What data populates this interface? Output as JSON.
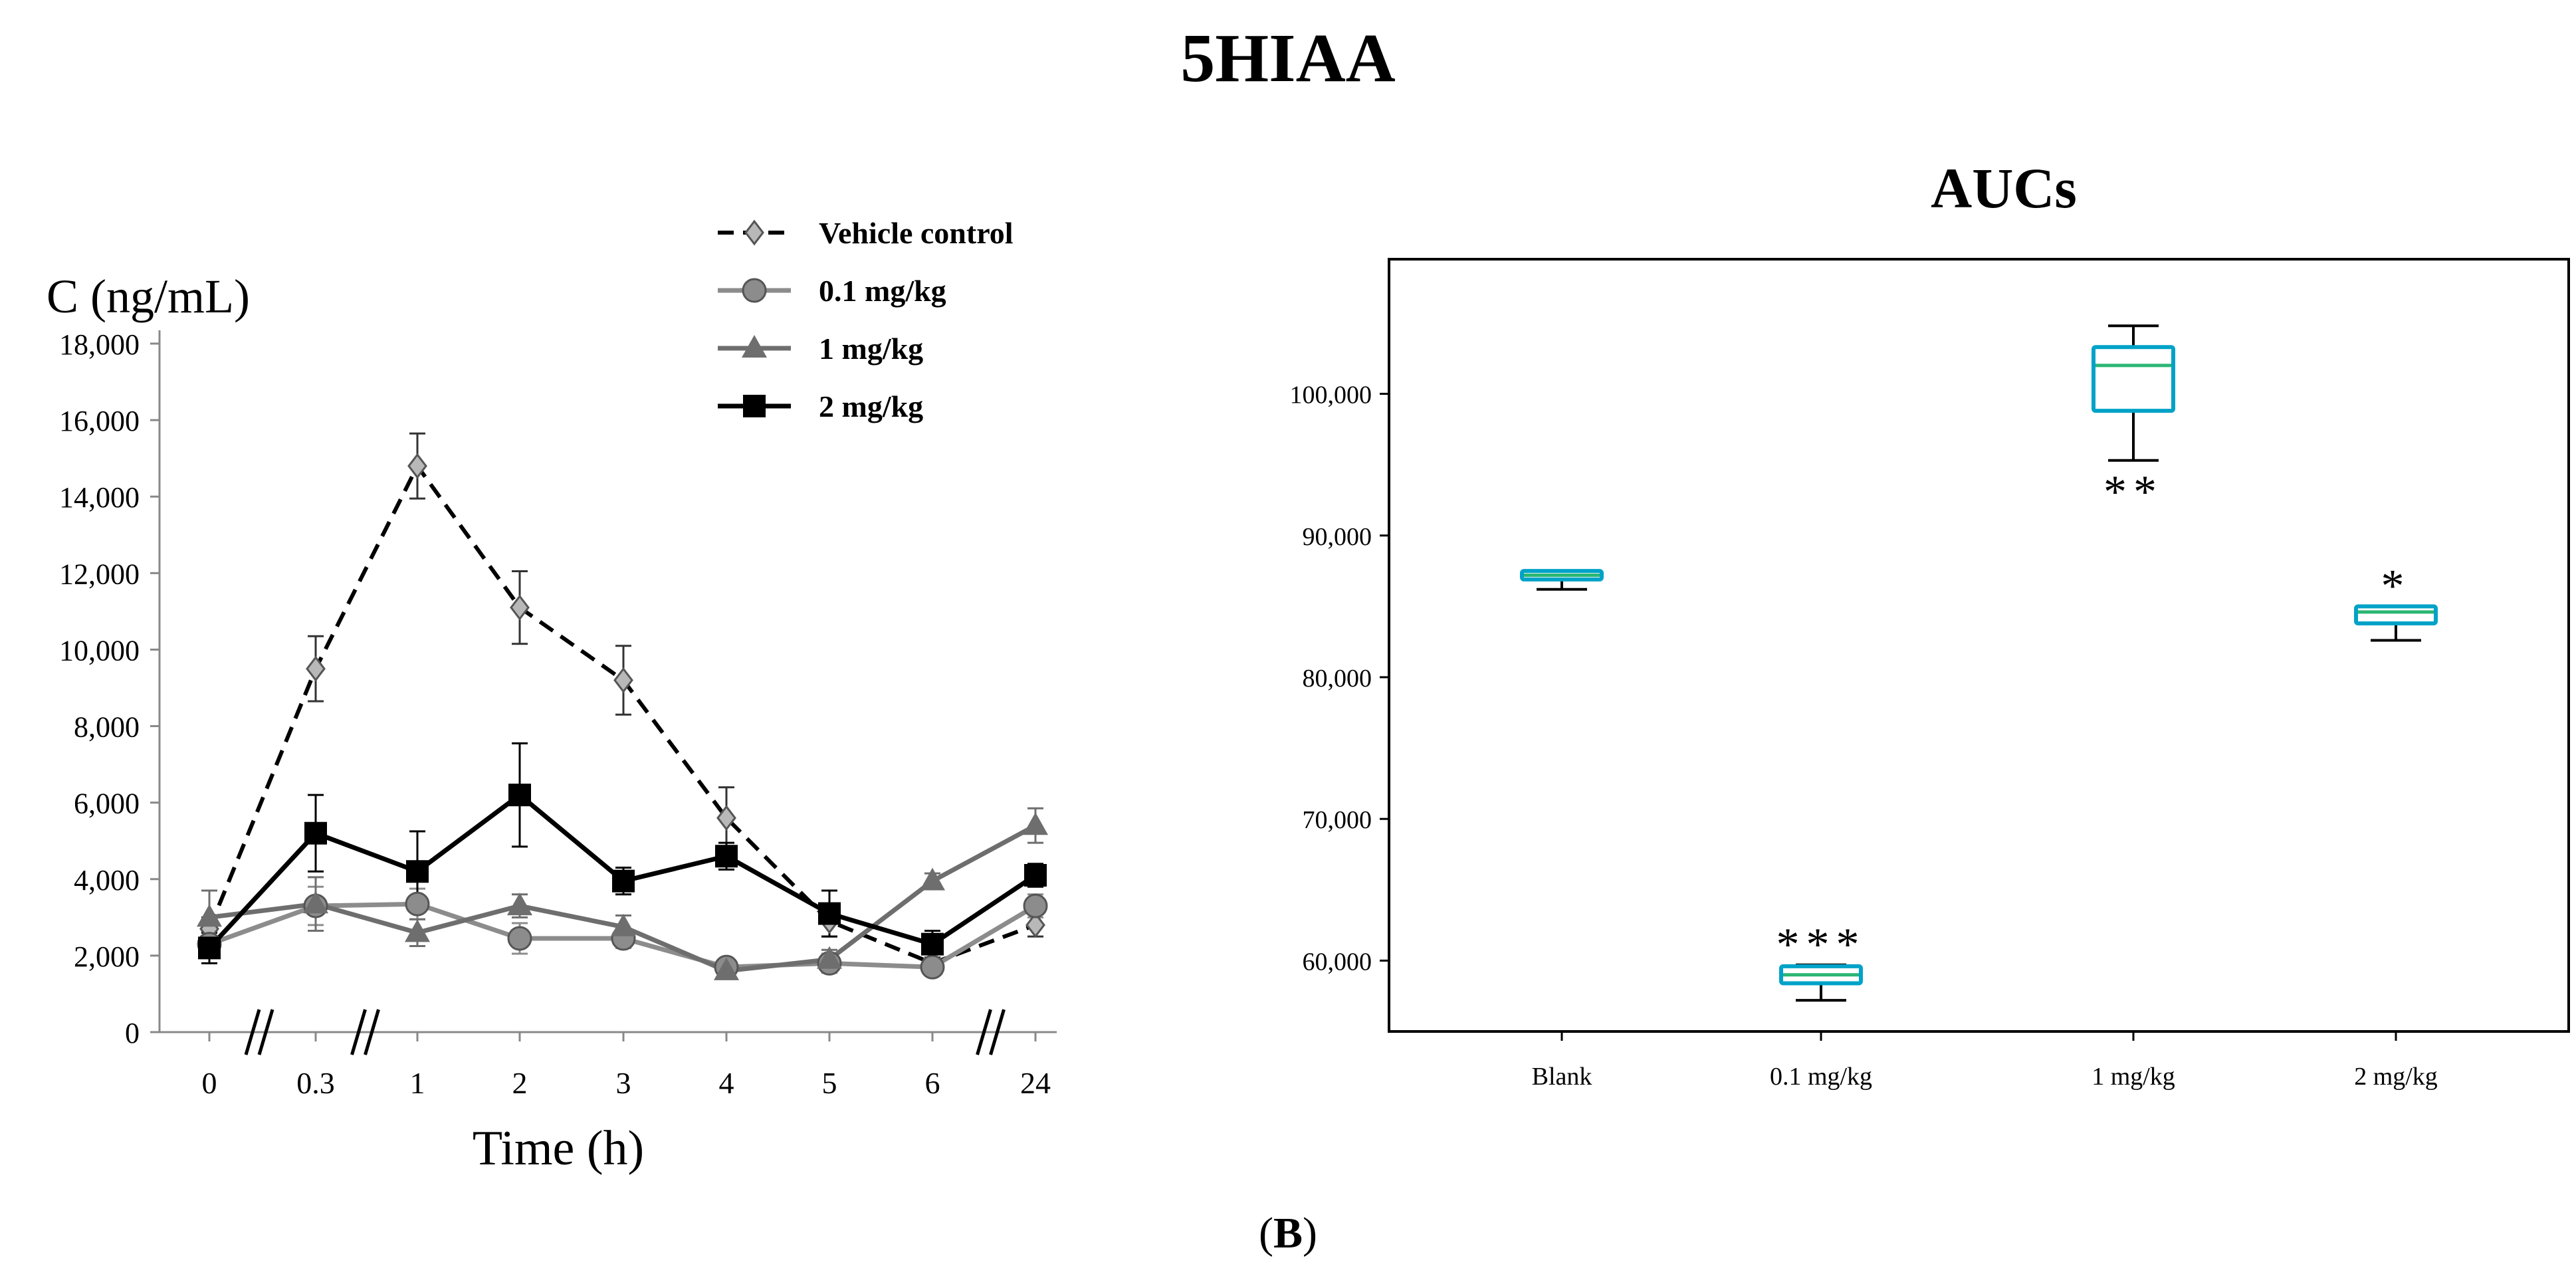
{
  "figure": {
    "title": "5HIAA",
    "panel_label_open": "(",
    "panel_label_letter": "B",
    "panel_label_close": ")"
  },
  "chart_data": [
    {
      "type": "line",
      "title": "",
      "ylabel": "C (ng/mL)",
      "xlabel": "Time (h)",
      "categories": [
        "0",
        "0.3",
        "1",
        "2",
        "3",
        "4",
        "5",
        "6",
        "24"
      ],
      "axis_breaks_after": [
        "0",
        "0.3",
        "6"
      ],
      "ylim": [
        0,
        18000
      ],
      "yticks": [
        0,
        2000,
        4000,
        6000,
        8000,
        10000,
        12000,
        14000,
        16000,
        18000
      ],
      "ytick_labels": [
        "0",
        "2,000",
        "4,000",
        "6,000",
        "8,000",
        "10,000",
        "12,000",
        "14,000",
        "16,000",
        "18,000"
      ],
      "legend_position": "top-center",
      "series": [
        {
          "name": "Vehicle control",
          "color": "#000000",
          "marker_color": "#b8b8b8",
          "marker": "diamond",
          "dashed": true,
          "values": [
            2700,
            9500,
            14800,
            11100,
            9200,
            5600,
            2900,
            1800,
            2800
          ],
          "errors": [
            300,
            850,
            850,
            950,
            900,
            800,
            400,
            300,
            300
          ]
        },
        {
          "name": "0.1 mg/kg",
          "color": "#8c8c8c",
          "marker_color": "#8c8c8c",
          "marker": "circle",
          "dashed": false,
          "values": [
            2300,
            3300,
            3350,
            2450,
            2450,
            1700,
            1800,
            1700,
            3300
          ],
          "errors": [
            300,
            500,
            400,
            400,
            250,
            200,
            250,
            200,
            300
          ]
        },
        {
          "name": "1 mg/kg",
          "color": "#6e6e6e",
          "marker_color": "#6e6e6e",
          "marker": "triangle",
          "dashed": false,
          "values": [
            3000,
            3350,
            2600,
            3300,
            2750,
            1600,
            1900,
            3950,
            5400
          ],
          "errors": [
            700,
            700,
            350,
            300,
            300,
            200,
            250,
            200,
            450
          ]
        },
        {
          "name": "2 mg/kg",
          "color": "#000000",
          "marker_color": "#000000",
          "marker": "square",
          "dashed": false,
          "values": [
            2200,
            5200,
            4200,
            6200,
            3950,
            4600,
            3100,
            2300,
            4100
          ],
          "errors": [
            400,
            1000,
            1050,
            1350,
            350,
            350,
            600,
            350,
            300
          ]
        }
      ]
    },
    {
      "type": "box",
      "title": "AUCs",
      "xlabel": "",
      "ylabel": "",
      "categories": [
        "Blank",
        "0.1 mg/kg",
        "1 mg/kg",
        "2 mg/kg"
      ],
      "ylim": [
        55000,
        109500
      ],
      "yticks": [
        60000,
        70000,
        80000,
        90000,
        100000
      ],
      "ytick_labels": [
        "60,000",
        "70,000",
        "80,000",
        "90,000",
        "100,000"
      ],
      "box_color": "#00a2c8",
      "median_color": "#2bb673",
      "whisker_color": "#000000",
      "boxes": [
        {
          "label": "Blank",
          "min": 86200,
          "q1": 86900,
          "median": 87200,
          "q3": 87500,
          "max": 87500,
          "significance": ""
        },
        {
          "label": "0.1 mg/kg",
          "min": 57200,
          "q1": 58400,
          "median": 59000,
          "q3": 59600,
          "max": 59700,
          "significance": "***"
        },
        {
          "label": "1 mg/kg",
          "min": 95300,
          "q1": 98800,
          "median": 102000,
          "q3": 103300,
          "max": 104800,
          "significance": "**"
        },
        {
          "label": "2 mg/kg",
          "min": 82600,
          "q1": 83800,
          "median": 84600,
          "q3": 85000,
          "max": 85000,
          "significance": "*"
        }
      ]
    }
  ]
}
